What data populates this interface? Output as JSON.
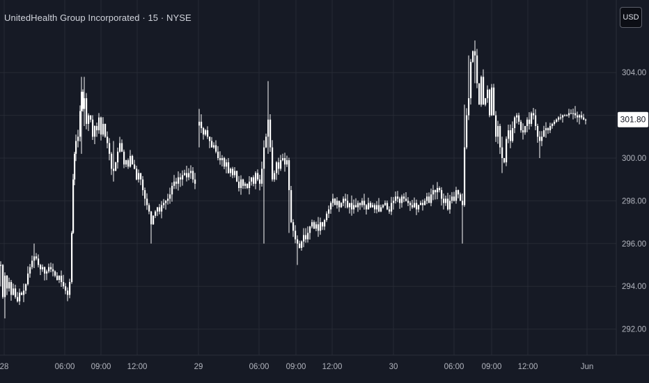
{
  "header": {
    "title": "UnitedHealth Group Incorporated · 15 · NYSE"
  },
  "currency_button": {
    "label": "USD"
  },
  "chart_data": {
    "type": "candlestick",
    "title": "UnitedHealth Group Incorporated · 15 · NYSE",
    "y_axis": {
      "ticks": [
        "292.00",
        "294.00",
        "296.00",
        "298.00",
        "300.00",
        "302.00",
        "304.00"
      ],
      "range": [
        291.0,
        306.0
      ]
    },
    "x_axis": {
      "ticks": [
        "28",
        "06:00",
        "09:00",
        "12:00",
        "29",
        "06:00",
        "09:00",
        "12:00",
        "30",
        "06:00",
        "09:00",
        "12:00",
        "Jun"
      ]
    },
    "last_price": "301.80",
    "colors": {
      "background": "#161a25",
      "candle": "#ffffff",
      "grid": "#262a35",
      "price_label_bg": "#ffffff"
    },
    "grid": true,
    "close_path": [
      [
        0,
        295.0
      ],
      [
        3,
        293.5
      ],
      [
        6,
        294.5
      ],
      [
        9,
        293.9
      ],
      [
        12,
        294.2
      ],
      [
        15,
        293.6
      ],
      [
        18,
        293.9
      ],
      [
        21,
        293.5
      ],
      [
        24,
        293.3
      ],
      [
        27,
        293.7
      ],
      [
        30,
        293.6
      ],
      [
        33,
        293.8
      ],
      [
        36,
        294.1
      ],
      [
        39,
        294.6
      ],
      [
        42,
        294.9
      ],
      [
        45,
        295.2
      ],
      [
        48,
        295.4
      ],
      [
        51,
        295.3
      ],
      [
        54,
        295.0
      ],
      [
        57,
        294.8
      ],
      [
        60,
        294.9
      ],
      [
        63,
        294.6
      ],
      [
        66,
        294.7
      ],
      [
        69,
        294.9
      ],
      [
        72,
        294.8
      ],
      [
        75,
        294.7
      ],
      [
        78,
        294.5
      ],
      [
        81,
        294.3
      ],
      [
        84,
        294.5
      ],
      [
        87,
        294.2
      ],
      [
        90,
        294.0
      ],
      [
        93,
        293.8
      ],
      [
        96,
        293.6
      ],
      [
        99,
        294.2
      ],
      [
        102,
        296.5
      ],
      [
        104,
        299.0
      ],
      [
        106,
        300.2
      ],
      [
        108,
        300.8
      ],
      [
        111,
        301.0
      ],
      [
        114,
        302.2
      ],
      [
        116,
        303.1
      ],
      [
        118,
        302.3
      ],
      [
        120,
        302.8
      ],
      [
        123,
        301.6
      ],
      [
        126,
        302.0
      ],
      [
        129,
        301.8
      ],
      [
        132,
        301.0
      ],
      [
        135,
        301.5
      ],
      [
        138,
        301.3
      ],
      [
        141,
        301.9
      ],
      [
        144,
        301.1
      ],
      [
        147,
        301.6
      ],
      [
        150,
        301.0
      ],
      [
        153,
        300.7
      ],
      [
        156,
        300.2
      ],
      [
        159,
        299.5
      ],
      [
        162,
        299.4
      ],
      [
        165,
        299.8
      ],
      [
        168,
        300.3
      ],
      [
        171,
        300.7
      ],
      [
        174,
        300.3
      ],
      [
        177,
        299.7
      ],
      [
        180,
        299.9
      ],
      [
        183,
        299.6
      ],
      [
        186,
        300.1
      ],
      [
        189,
        299.7
      ],
      [
        192,
        299.5
      ],
      [
        195,
        299.0
      ],
      [
        198,
        299.3
      ],
      [
        201,
        299.0
      ],
      [
        204,
        298.5
      ],
      [
        207,
        298.1
      ],
      [
        210,
        297.8
      ],
      [
        213,
        297.5
      ],
      [
        216,
        296.9
      ],
      [
        219,
        297.3
      ],
      [
        222,
        297.5
      ],
      [
        225,
        297.7
      ],
      [
        228,
        297.5
      ],
      [
        231,
        297.8
      ],
      [
        234,
        297.9
      ],
      [
        237,
        298.0
      ],
      [
        240,
        298.1
      ],
      [
        243,
        298.3
      ],
      [
        246,
        298.7
      ],
      [
        249,
        298.9
      ],
      [
        252,
        298.8
      ],
      [
        255,
        299.1
      ],
      [
        258,
        299.0
      ],
      [
        261,
        299.2
      ],
      [
        264,
        299.3
      ],
      [
        267,
        299.1
      ],
      [
        270,
        299.3
      ],
      [
        273,
        299.4
      ],
      [
        276,
        299.0
      ],
      [
        279,
        298.8
      ],
      [
        285,
        301.7
      ],
      [
        288,
        301.4
      ],
      [
        291,
        301.1
      ],
      [
        294,
        301.3
      ],
      [
        297,
        301.0
      ],
      [
        300,
        300.8
      ],
      [
        303,
        300.5
      ],
      [
        306,
        300.6
      ],
      [
        309,
        300.3
      ],
      [
        312,
        300.0
      ],
      [
        315,
        299.9
      ],
      [
        318,
        300.0
      ],
      [
        321,
        299.6
      ],
      [
        324,
        299.8
      ],
      [
        327,
        299.3
      ],
      [
        330,
        299.5
      ],
      [
        333,
        299.2
      ],
      [
        336,
        299.4
      ],
      [
        339,
        298.9
      ],
      [
        342,
        298.6
      ],
      [
        345,
        299.0
      ],
      [
        348,
        298.7
      ],
      [
        351,
        298.8
      ],
      [
        354,
        298.6
      ],
      [
        357,
        298.9
      ],
      [
        360,
        299.1
      ],
      [
        363,
        298.8
      ],
      [
        366,
        299.3
      ],
      [
        369,
        299.0
      ],
      [
        372,
        298.8
      ],
      [
        375,
        299.5
      ],
      [
        378,
        300.5
      ],
      [
        381,
        301.0
      ],
      [
        384,
        301.8
      ],
      [
        387,
        300.5
      ],
      [
        390,
        299.0
      ],
      [
        393,
        299.3
      ],
      [
        396,
        299.8
      ],
      [
        399,
        299.5
      ],
      [
        402,
        299.9
      ],
      [
        405,
        300.0
      ],
      [
        408,
        299.7
      ],
      [
        411,
        299.9
      ],
      [
        414,
        298.5
      ],
      [
        417,
        297.0
      ],
      [
        420,
        296.6
      ],
      [
        423,
        296.2
      ],
      [
        426,
        296.0
      ],
      [
        429,
        295.8
      ],
      [
        432,
        296.1
      ],
      [
        435,
        296.4
      ],
      [
        438,
        296.2
      ],
      [
        441,
        296.5
      ],
      [
        444,
        296.8
      ],
      [
        447,
        297.0
      ],
      [
        450,
        296.7
      ],
      [
        453,
        296.9
      ],
      [
        456,
        296.6
      ],
      [
        459,
        297.0
      ],
      [
        462,
        296.8
      ],
      [
        465,
        297.1
      ],
      [
        468,
        297.4
      ],
      [
        471,
        297.6
      ],
      [
        474,
        297.9
      ],
      [
        477,
        298.1
      ],
      [
        480,
        297.8
      ],
      [
        483,
        298.0
      ],
      [
        486,
        297.7
      ],
      [
        489,
        297.9
      ],
      [
        492,
        298.1
      ],
      [
        495,
        298.0
      ],
      [
        498,
        297.7
      ],
      [
        501,
        297.9
      ],
      [
        504,
        297.6
      ],
      [
        507,
        297.8
      ],
      [
        510,
        297.7
      ],
      [
        513,
        297.9
      ],
      [
        516,
        297.8
      ],
      [
        519,
        298.0
      ],
      [
        522,
        297.8
      ],
      [
        525,
        297.6
      ],
      [
        528,
        297.9
      ],
      [
        531,
        297.7
      ],
      [
        534,
        297.8
      ],
      [
        537,
        297.6
      ],
      [
        540,
        297.8
      ],
      [
        543,
        297.5
      ],
      [
        546,
        297.7
      ],
      [
        549,
        297.8
      ],
      [
        552,
        297.9
      ],
      [
        555,
        297.6
      ],
      [
        558,
        297.5
      ],
      [
        561,
        297.9
      ],
      [
        564,
        298.0
      ],
      [
        567,
        298.2
      ],
      [
        570,
        298.1
      ],
      [
        573,
        297.9
      ],
      [
        576,
        298.2
      ],
      [
        579,
        298.1
      ],
      [
        582,
        298.0
      ],
      [
        585,
        297.9
      ],
      [
        588,
        297.8
      ],
      [
        591,
        297.7
      ],
      [
        594,
        297.9
      ],
      [
        597,
        297.6
      ],
      [
        600,
        297.8
      ],
      [
        603,
        297.9
      ],
      [
        606,
        297.8
      ],
      [
        609,
        298.0
      ],
      [
        612,
        298.2
      ],
      [
        615,
        297.9
      ],
      [
        618,
        298.3
      ],
      [
        621,
        298.5
      ],
      [
        624,
        298.4
      ],
      [
        627,
        298.6
      ],
      [
        630,
        298.5
      ],
      [
        633,
        298.1
      ],
      [
        636,
        297.9
      ],
      [
        639,
        298.1
      ],
      [
        642,
        297.6
      ],
      [
        645,
        298.0
      ],
      [
        648,
        298.2
      ],
      [
        651,
        298.0
      ],
      [
        654,
        298.5
      ],
      [
        657,
        298.3
      ],
      [
        660,
        298.0
      ],
      [
        663,
        297.8
      ],
      [
        666,
        300.5
      ],
      [
        669,
        302.0
      ],
      [
        672,
        302.8
      ],
      [
        675,
        304.5
      ],
      [
        678,
        305.0
      ],
      [
        681,
        304.8
      ],
      [
        684,
        303.5
      ],
      [
        687,
        302.5
      ],
      [
        690,
        303.8
      ],
      [
        693,
        302.5
      ],
      [
        696,
        302.8
      ],
      [
        699,
        303.2
      ],
      [
        702,
        302.0
      ],
      [
        705,
        303.3
      ],
      [
        708,
        302.0
      ],
      [
        711,
        301.0
      ],
      [
        714,
        301.5
      ],
      [
        717,
        300.5
      ],
      [
        720,
        300.0
      ],
      [
        723,
        299.8
      ],
      [
        726,
        300.9
      ],
      [
        729,
        301.3
      ],
      [
        732,
        300.8
      ],
      [
        735,
        301.4
      ],
      [
        738,
        301.9
      ],
      [
        741,
        302.0
      ],
      [
        744,
        301.7
      ],
      [
        747,
        301.3
      ],
      [
        750,
        301.2
      ],
      [
        753,
        301.5
      ],
      [
        756,
        301.8
      ],
      [
        759,
        301.6
      ],
      [
        762,
        302.1
      ],
      [
        765,
        302.0
      ],
      [
        768,
        301.5
      ],
      [
        771,
        301.0
      ],
      [
        774,
        300.8
      ],
      [
        777,
        301.0
      ],
      [
        780,
        301.3
      ],
      [
        783,
        301.4
      ],
      [
        786,
        301.3
      ],
      [
        789,
        301.5
      ],
      [
        792,
        301.6
      ],
      [
        795,
        301.7
      ],
      [
        798,
        301.8
      ],
      [
        801,
        301.9
      ],
      [
        804,
        301.9
      ],
      [
        807,
        302.0
      ],
      [
        810,
        302.0
      ],
      [
        813,
        302.0
      ],
      [
        816,
        302.1
      ],
      [
        819,
        302.1
      ],
      [
        822,
        302.1
      ],
      [
        825,
        302.0
      ],
      [
        828,
        301.9
      ],
      [
        831,
        302.0
      ],
      [
        834,
        301.9
      ],
      [
        837,
        301.8
      ],
      [
        840,
        301.8
      ]
    ],
    "spikes": [
      [
        0,
        294.0,
        295.0
      ],
      [
        6,
        292.5,
        294.5
      ],
      [
        48,
        295.0,
        296.0
      ],
      [
        102,
        294.3,
        296.5
      ],
      [
        116,
        300.2,
        303.8
      ],
      [
        120,
        301.5,
        303.8
      ],
      [
        162,
        298.9,
        300.8
      ],
      [
        216,
        296.0,
        297.3
      ],
      [
        285,
        300.5,
        302.3
      ],
      [
        378,
        296.0,
        300.7
      ],
      [
        384,
        300.2,
        303.6
      ],
      [
        414,
        296.5,
        299.8
      ],
      [
        426,
        295.0,
        296.3
      ],
      [
        663,
        296.0,
        298.3
      ],
      [
        666,
        299.8,
        302.5
      ],
      [
        672,
        302.0,
        304.8
      ],
      [
        681,
        303.5,
        305.5
      ],
      [
        720,
        299.3,
        301.0
      ],
      [
        774,
        300.0,
        301.2
      ]
    ]
  }
}
